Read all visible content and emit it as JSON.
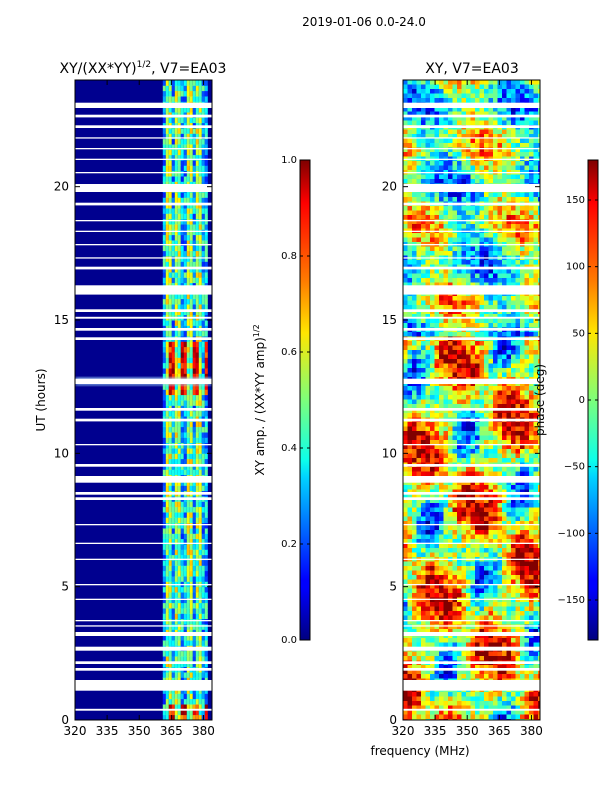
{
  "suptitle": "2019-01-06 0.0-24.0",
  "chart_data": [
    {
      "type": "heatmap",
      "title_base": "XY/(XX*YY)",
      "title_exp": "1/2",
      "title_suffix": ", V7=EA03",
      "xlabel": "",
      "ylabel": "UT (hours)",
      "xlim": [
        320,
        384
      ],
      "ylim": [
        0,
        24
      ],
      "xticks": [
        "320",
        "335",
        "350",
        "365",
        "380"
      ],
      "xtick_values": [
        320,
        335,
        350,
        365,
        380
      ],
      "yticks": [
        "0",
        "5",
        "10",
        "15",
        "20"
      ],
      "ytick_values": [
        0,
        5,
        10,
        15,
        20
      ],
      "active_band_mhz": [
        361,
        381
      ],
      "active_channels_mhz": [
        363.5,
        367.5,
        372.5,
        377.5
      ],
      "colorbar": {
        "label_base": "XY amp. / (XX*YY amp)",
        "label_exp": "1/2",
        "range": [
          0.0,
          1.0
        ],
        "ticks": [
          "0.0",
          "0.2",
          "0.4",
          "0.6",
          "0.8",
          "1.0"
        ],
        "tick_values": [
          0.0,
          0.2,
          0.4,
          0.6,
          0.8,
          1.0
        ]
      }
    },
    {
      "type": "heatmap",
      "title": "XY, V7=EA03",
      "xlabel": "frequency (MHz)",
      "ylabel": "",
      "xlim": [
        320,
        384
      ],
      "ylim": [
        0,
        24
      ],
      "xticks": [
        "320",
        "335",
        "350",
        "365",
        "380"
      ],
      "xtick_values": [
        320,
        335,
        350,
        365,
        380
      ],
      "yticks": [
        "0",
        "5",
        "10",
        "15",
        "20"
      ],
      "ytick_values": [
        0,
        5,
        10,
        15,
        20
      ],
      "colorbar": {
        "label": "phase (deg)",
        "range": [
          -180,
          180
        ],
        "ticks": [
          "150",
          "100",
          "50",
          "0",
          "−50",
          "−100",
          "−150"
        ],
        "tick_values": [
          150,
          100,
          50,
          0,
          -50,
          -100,
          -150
        ]
      }
    }
  ],
  "flagged_gaps_ut_hours": [
    [
      0.35,
      0.42
    ],
    [
      1.1,
      1.5
    ],
    [
      1.85,
      1.95
    ],
    [
      2.1,
      2.2
    ],
    [
      2.6,
      2.75
    ],
    [
      3.15,
      3.3
    ],
    [
      3.5,
      3.55
    ],
    [
      3.7,
      3.75
    ],
    [
      4.5,
      4.55
    ],
    [
      5.05,
      5.1
    ],
    [
      6.0,
      6.05
    ],
    [
      6.6,
      6.65
    ],
    [
      7.3,
      7.35
    ],
    [
      8.25,
      8.35
    ],
    [
      8.45,
      8.55
    ],
    [
      8.9,
      9.15
    ],
    [
      9.5,
      9.6
    ],
    [
      10.3,
      10.35
    ],
    [
      11.2,
      11.3
    ],
    [
      11.6,
      11.7
    ],
    [
      12.6,
      12.8
    ],
    [
      14.25,
      14.35
    ],
    [
      14.6,
      14.7
    ],
    [
      15.05,
      15.12
    ],
    [
      15.3,
      15.4
    ],
    [
      15.95,
      16.3
    ],
    [
      16.9,
      17.0
    ],
    [
      17.3,
      17.35
    ],
    [
      17.8,
      17.85
    ],
    [
      18.3,
      18.35
    ],
    [
      18.7,
      18.75
    ],
    [
      19.3,
      19.4
    ],
    [
      19.8,
      20.1
    ],
    [
      20.5,
      20.55
    ],
    [
      21.0,
      21.05
    ],
    [
      21.4,
      21.45
    ],
    [
      21.8,
      21.85
    ],
    [
      22.2,
      22.3
    ],
    [
      22.6,
      22.7
    ],
    [
      22.95,
      23.15
    ]
  ]
}
